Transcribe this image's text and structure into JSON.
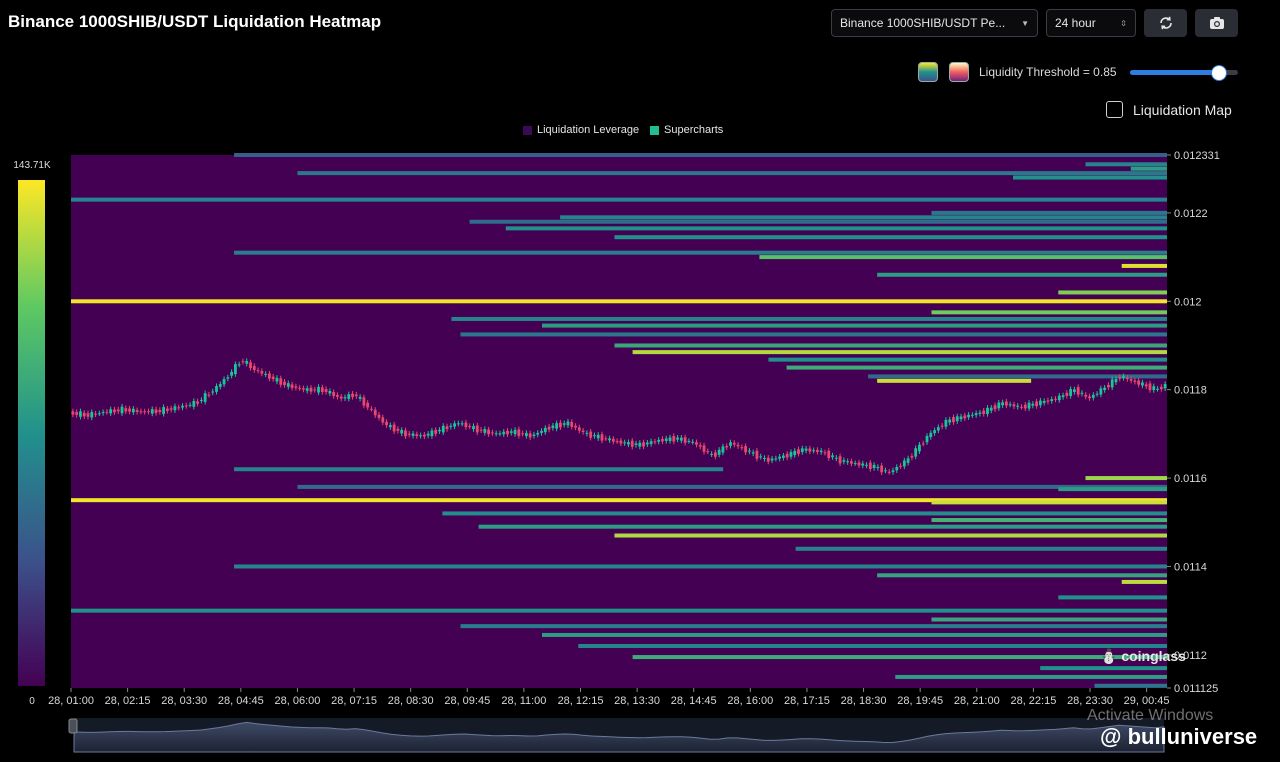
{
  "header": {
    "title": "Binance 1000SHIB/USDT Liquidation Heatmap",
    "pair_select": "Binance 1000SHIB/USDT Pe...",
    "range_select": "24 hour",
    "refresh_icon": "refresh-icon",
    "camera_icon": "camera-icon"
  },
  "controls": {
    "threshold_label": "Liquidity Threshold = 0.85",
    "threshold_value": 0.85,
    "liquidation_map_label": "Liquidation Map",
    "liquidation_map_checked": false
  },
  "colors": {
    "background": "#000000",
    "heat_low": "#440154",
    "heat_mid": "#21918c",
    "heat_high": "#fde725",
    "candle_up": "#16c79a",
    "candle_down": "#e8486d"
  },
  "watermarks": {
    "coinglass": "coinglass",
    "activate": "Activate Windows",
    "brand": "@ bulluniverse"
  },
  "chart_data": {
    "type": "heatmap",
    "title": "Binance 1000SHIB/USDT Liquidation Heatmap",
    "legend": [
      "Liquidation Leverage",
      "Supercharts"
    ],
    "legend_colors": [
      "#3b0a55",
      "#1fbf8f"
    ],
    "colorbar": {
      "max_label": "143.71K",
      "min_label": "0",
      "max": 143710,
      "min": 0
    },
    "x_ticks": [
      "28, 01:00",
      "28, 02:15",
      "28, 03:30",
      "28, 04:45",
      "28, 06:00",
      "28, 07:15",
      "28, 08:30",
      "28, 09:45",
      "28, 11:00",
      "28, 12:15",
      "28, 13:30",
      "28, 14:45",
      "28, 16:00",
      "28, 17:15",
      "28, 18:30",
      "28, 19:45",
      "28, 21:00",
      "28, 22:15",
      "28, 23:30",
      "29, 00:45"
    ],
    "y_ticks": [
      "0.012331",
      "0.0122",
      "0.012",
      "0.0118",
      "0.0116",
      "0.0114",
      "0.0112",
      "0.011125"
    ],
    "ylim": [
      0.011125,
      0.012331
    ],
    "x_hours": [
      0,
      24.2
    ],
    "price": [
      [
        0,
        0.011748
      ],
      [
        0.4,
        0.011742
      ],
      [
        0.8,
        0.01175
      ],
      [
        1.2,
        0.011755
      ],
      [
        1.6,
        0.01175
      ],
      [
        2.0,
        0.011752
      ],
      [
        2.4,
        0.01176
      ],
      [
        2.8,
        0.01177
      ],
      [
        3.2,
        0.0118
      ],
      [
        3.5,
        0.01183
      ],
      [
        3.8,
        0.011868
      ],
      [
        4.1,
        0.011845
      ],
      [
        4.4,
        0.01183
      ],
      [
        4.8,
        0.01181
      ],
      [
        5.2,
        0.0118
      ],
      [
        5.6,
        0.0118
      ],
      [
        6.0,
        0.01178
      ],
      [
        6.3,
        0.01179
      ],
      [
        6.6,
        0.01176
      ],
      [
        7.0,
        0.01172
      ],
      [
        7.4,
        0.0117
      ],
      [
        7.8,
        0.011695
      ],
      [
        8.2,
        0.01171
      ],
      [
        8.6,
        0.011725
      ],
      [
        9.0,
        0.01171
      ],
      [
        9.4,
        0.0117
      ],
      [
        9.8,
        0.011705
      ],
      [
        10.2,
        0.011695
      ],
      [
        10.6,
        0.011715
      ],
      [
        11.0,
        0.011725
      ],
      [
        11.4,
        0.0117
      ],
      [
        11.8,
        0.01169
      ],
      [
        12.2,
        0.01168
      ],
      [
        12.6,
        0.011675
      ],
      [
        13.0,
        0.011685
      ],
      [
        13.4,
        0.01169
      ],
      [
        13.8,
        0.01168
      ],
      [
        14.2,
        0.01165
      ],
      [
        14.6,
        0.01168
      ],
      [
        15.0,
        0.01166
      ],
      [
        15.4,
        0.01164
      ],
      [
        15.8,
        0.01165
      ],
      [
        16.2,
        0.011665
      ],
      [
        16.6,
        0.01166
      ],
      [
        17.0,
        0.01164
      ],
      [
        17.4,
        0.011632
      ],
      [
        17.8,
        0.011625
      ],
      [
        18.1,
        0.011612
      ],
      [
        18.5,
        0.01164
      ],
      [
        19.0,
        0.0117
      ],
      [
        19.4,
        0.01173
      ],
      [
        19.8,
        0.01174
      ],
      [
        20.2,
        0.01175
      ],
      [
        20.6,
        0.01177
      ],
      [
        21.0,
        0.01176
      ],
      [
        21.4,
        0.01177
      ],
      [
        21.8,
        0.01178
      ],
      [
        22.2,
        0.0118
      ],
      [
        22.5,
        0.01178
      ],
      [
        22.8,
        0.0118
      ],
      [
        23.2,
        0.01183
      ],
      [
        23.6,
        0.011815
      ],
      [
        24.0,
        0.0118
      ],
      [
        24.2,
        0.01181
      ]
    ],
    "bands": [
      [
        0.012331,
        3.6,
        24.2,
        0.3
      ],
      [
        0.01231,
        22.4,
        24.2,
        0.45
      ],
      [
        0.0123,
        23.4,
        24.2,
        0.55
      ],
      [
        0.01229,
        5.0,
        24.2,
        0.4
      ],
      [
        0.01228,
        20.8,
        24.2,
        0.5
      ],
      [
        0.01223,
        0.0,
        24.2,
        0.45
      ],
      [
        0.0122,
        19.0,
        24.2,
        0.4
      ],
      [
        0.01219,
        10.8,
        24.2,
        0.45
      ],
      [
        0.01218,
        8.8,
        24.2,
        0.35
      ],
      [
        0.012165,
        9.6,
        24.2,
        0.5
      ],
      [
        0.012145,
        12.0,
        24.2,
        0.5
      ],
      [
        0.01211,
        3.6,
        24.2,
        0.42
      ],
      [
        0.0121,
        15.2,
        24.2,
        0.72
      ],
      [
        0.01208,
        23.2,
        24.2,
        0.95
      ],
      [
        0.01206,
        17.8,
        24.2,
        0.55
      ],
      [
        0.01202,
        21.8,
        24.2,
        0.8
      ],
      [
        0.012,
        0.0,
        24.2,
        0.98
      ],
      [
        0.011975,
        19.0,
        24.2,
        0.78
      ],
      [
        0.01196,
        8.4,
        24.2,
        0.45
      ],
      [
        0.011945,
        10.4,
        24.2,
        0.55
      ],
      [
        0.011925,
        8.6,
        24.2,
        0.4
      ],
      [
        0.0119,
        12.0,
        24.2,
        0.6
      ],
      [
        0.011885,
        12.4,
        24.2,
        0.88
      ],
      [
        0.011868,
        15.4,
        24.2,
        0.5
      ],
      [
        0.01185,
        15.8,
        24.2,
        0.62
      ],
      [
        0.01183,
        17.6,
        24.2,
        0.35
      ],
      [
        0.01182,
        17.8,
        21.2,
        0.92
      ],
      [
        0.01162,
        3.6,
        14.4,
        0.45
      ],
      [
        0.0116,
        22.4,
        24.2,
        0.85
      ],
      [
        0.01158,
        5.0,
        24.2,
        0.35
      ],
      [
        0.011575,
        21.8,
        24.2,
        0.55
      ],
      [
        0.01155,
        0.0,
        24.2,
        0.98
      ],
      [
        0.011545,
        19.0,
        24.2,
        0.92
      ],
      [
        0.01152,
        8.2,
        24.2,
        0.48
      ],
      [
        0.011505,
        19.0,
        24.2,
        0.65
      ],
      [
        0.01149,
        9.0,
        24.2,
        0.55
      ],
      [
        0.01147,
        12.0,
        24.2,
        0.88
      ],
      [
        0.01144,
        16.0,
        24.2,
        0.45
      ],
      [
        0.0114,
        3.6,
        24.2,
        0.45
      ],
      [
        0.01138,
        17.8,
        24.2,
        0.58
      ],
      [
        0.011365,
        23.2,
        24.2,
        0.9
      ],
      [
        0.01133,
        21.8,
        24.2,
        0.5
      ],
      [
        0.0113,
        0.0,
        24.2,
        0.5
      ],
      [
        0.01128,
        19.0,
        24.2,
        0.6
      ],
      [
        0.011265,
        8.6,
        24.2,
        0.42
      ],
      [
        0.011245,
        10.4,
        24.2,
        0.55
      ],
      [
        0.01122,
        11.2,
        24.2,
        0.45
      ],
      [
        0.011195,
        12.4,
        24.2,
        0.62
      ],
      [
        0.01117,
        21.4,
        24.2,
        0.5
      ],
      [
        0.01115,
        18.2,
        24.2,
        0.55
      ],
      [
        0.01113,
        22.6,
        24.2,
        0.4
      ]
    ]
  }
}
